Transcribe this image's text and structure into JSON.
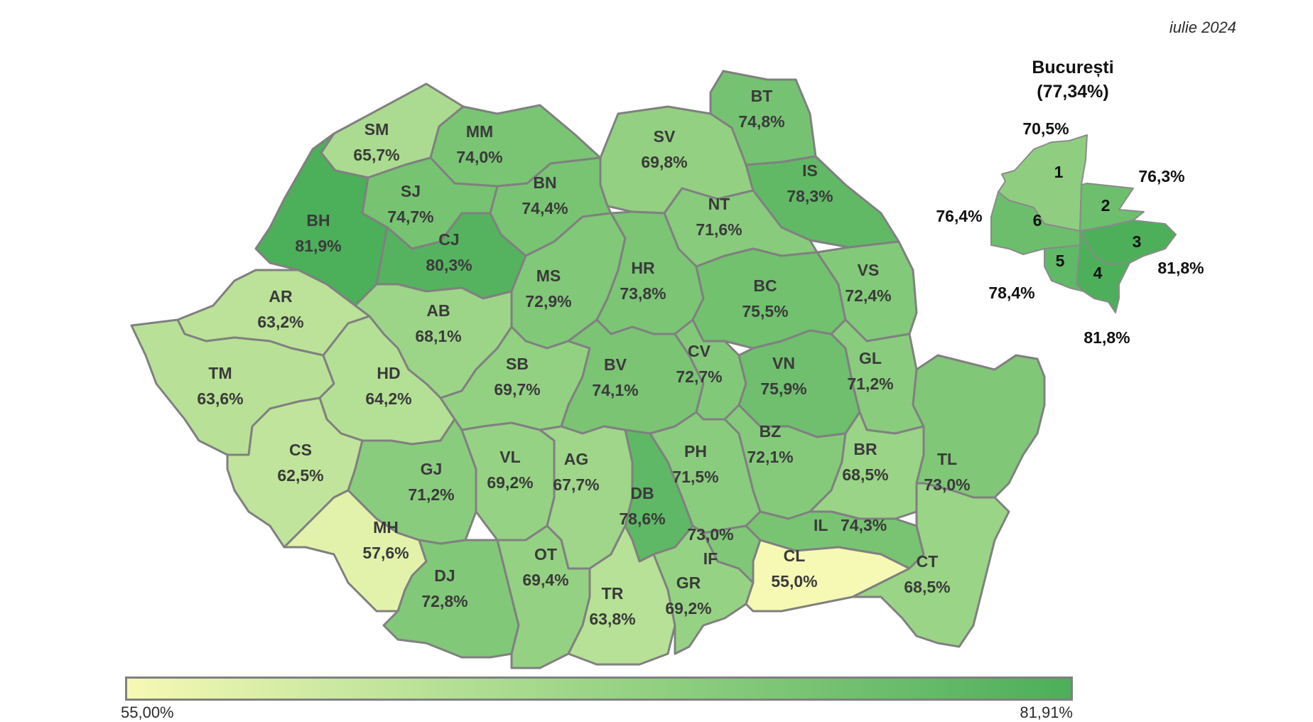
{
  "header": {
    "date": "iulie 2024"
  },
  "legend": {
    "min_label": "55,00%",
    "max_label": "81,91%",
    "min_color": "#f6f9b4",
    "max_color": "#4caf5a"
  },
  "counties": [
    {
      "code": "SM",
      "value": "65,7%",
      "pct": 65.7
    },
    {
      "code": "MM",
      "value": "74,0%",
      "pct": 74.0
    },
    {
      "code": "BT",
      "value": "74,8%",
      "pct": 74.8
    },
    {
      "code": "SV",
      "value": "69,8%",
      "pct": 69.8
    },
    {
      "code": "IS",
      "value": "78,3%",
      "pct": 78.3
    },
    {
      "code": "BN",
      "value": "74,4%",
      "pct": 74.4
    },
    {
      "code": "SJ",
      "value": "74,7%",
      "pct": 74.7
    },
    {
      "code": "BH",
      "value": "81,9%",
      "pct": 81.9
    },
    {
      "code": "CJ",
      "value": "80,3%",
      "pct": 80.3
    },
    {
      "code": "NT",
      "value": "71,6%",
      "pct": 71.6
    },
    {
      "code": "AR",
      "value": "63,2%",
      "pct": 63.2
    },
    {
      "code": "AB",
      "value": "68,1%",
      "pct": 68.1
    },
    {
      "code": "MS",
      "value": "72,9%",
      "pct": 72.9
    },
    {
      "code": "HR",
      "value": "73,8%",
      "pct": 73.8
    },
    {
      "code": "BC",
      "value": "75,5%",
      "pct": 75.5
    },
    {
      "code": "VS",
      "value": "72,4%",
      "pct": 72.4
    },
    {
      "code": "TM",
      "value": "63,6%",
      "pct": 63.6
    },
    {
      "code": "HD",
      "value": "64,2%",
      "pct": 64.2
    },
    {
      "code": "SB",
      "value": "69,7%",
      "pct": 69.7
    },
    {
      "code": "BV",
      "value": "74,1%",
      "pct": 74.1
    },
    {
      "code": "CV",
      "value": "72,7%",
      "pct": 72.7
    },
    {
      "code": "VN",
      "value": "75,9%",
      "pct": 75.9
    },
    {
      "code": "GL",
      "value": "71,2%",
      "pct": 71.2
    },
    {
      "code": "CS",
      "value": "62,5%",
      "pct": 62.5
    },
    {
      "code": "GJ",
      "value": "71,2%",
      "pct": 71.2
    },
    {
      "code": "VL",
      "value": "69,2%",
      "pct": 69.2
    },
    {
      "code": "AG",
      "value": "67,7%",
      "pct": 67.7
    },
    {
      "code": "DB",
      "value": "78,6%",
      "pct": 78.6
    },
    {
      "code": "PH",
      "value": "71,5%",
      "pct": 71.5
    },
    {
      "code": "BZ",
      "value": "72,1%",
      "pct": 72.1
    },
    {
      "code": "BR",
      "value": "68,5%",
      "pct": 68.5
    },
    {
      "code": "TL",
      "value": "73,0%",
      "pct": 73.0
    },
    {
      "code": "MH",
      "value": "57,6%",
      "pct": 57.6
    },
    {
      "code": "DJ",
      "value": "72,8%",
      "pct": 72.8
    },
    {
      "code": "OT",
      "value": "69,4%",
      "pct": 69.4
    },
    {
      "code": "TR",
      "value": "63,8%",
      "pct": 63.8
    },
    {
      "code": "GR",
      "value": "69,2%",
      "pct": 69.2
    },
    {
      "code": "IF",
      "value": "73,0%",
      "pct": 73.0
    },
    {
      "code": "IL",
      "value": "74,3%",
      "pct": 74.3
    },
    {
      "code": "CL",
      "value": "55,0%",
      "pct": 55.0
    },
    {
      "code": "CT",
      "value": "68,5%",
      "pct": 68.5
    }
  ],
  "bucharest": {
    "title": "București",
    "total": "(77,34%)",
    "sectors": [
      {
        "num": "1",
        "value": "70,5%",
        "pct": 70.5
      },
      {
        "num": "2",
        "value": "76,3%",
        "pct": 76.3
      },
      {
        "num": "3",
        "value": "81,8%",
        "pct": 81.8
      },
      {
        "num": "4",
        "value": "81,8%",
        "pct": 81.8
      },
      {
        "num": "5",
        "value": "78,4%",
        "pct": 78.4
      },
      {
        "num": "6",
        "value": "76,4%",
        "pct": 76.4
      }
    ]
  }
}
